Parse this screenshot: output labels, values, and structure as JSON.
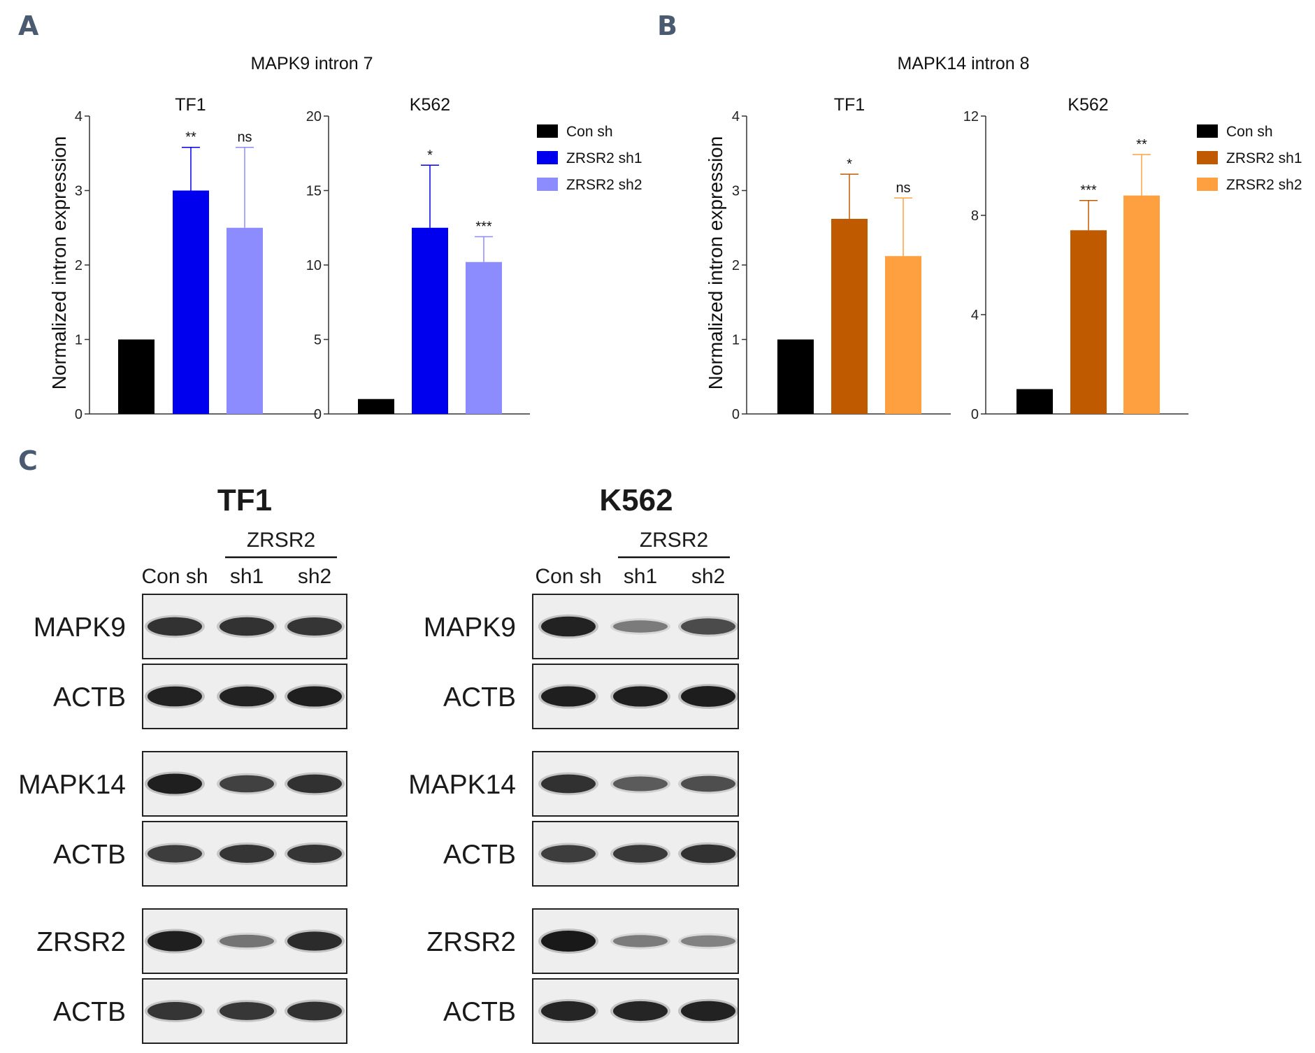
{
  "panel_labels": [
    "A",
    "B",
    "C"
  ],
  "chart_data": [
    {
      "id": "A-TF1",
      "type": "bar",
      "group_title": "MAPK9 intron 7",
      "title": "TF1",
      "ylabel": "Normalized intron expression",
      "categories": [
        "Con sh",
        "ZRSR2 sh1",
        "ZRSR2 sh2"
      ],
      "values": [
        1,
        3.0,
        2.5
      ],
      "errors": [
        0,
        0.58,
        1.08
      ],
      "significance": [
        "",
        "**",
        "ns"
      ],
      "ylim": [
        0,
        4
      ],
      "yticks": [
        0,
        1,
        2,
        3,
        4
      ],
      "colors": [
        "#000000",
        "#0000ee",
        "#8c8cff"
      ]
    },
    {
      "id": "A-K562",
      "type": "bar",
      "title": "K562",
      "categories": [
        "Con sh",
        "ZRSR2 sh1",
        "ZRSR2 sh2"
      ],
      "values": [
        1,
        12.5,
        10.2
      ],
      "errors": [
        0,
        4.2,
        1.7
      ],
      "significance": [
        "",
        "*",
        "***"
      ],
      "ylim": [
        0,
        20
      ],
      "yticks": [
        0,
        5,
        10,
        15,
        20
      ],
      "colors": [
        "#000000",
        "#0000ee",
        "#8c8cff"
      ]
    },
    {
      "id": "B-TF1",
      "type": "bar",
      "group_title": "MAPK14 intron 8",
      "title": "TF1",
      "ylabel": "Normalized intron expression",
      "categories": [
        "Con sh",
        "ZRSR2 sh1",
        "ZRSR2 sh2"
      ],
      "values": [
        1,
        2.62,
        2.12
      ],
      "errors": [
        0,
        0.6,
        0.78
      ],
      "significance": [
        "",
        "*",
        "ns"
      ],
      "ylim": [
        0,
        4
      ],
      "yticks": [
        0,
        1,
        2,
        3,
        4
      ],
      "colors": [
        "#000000",
        "#c05a00",
        "#ffa040"
      ]
    },
    {
      "id": "B-K562",
      "type": "bar",
      "title": "K562",
      "categories": [
        "Con sh",
        "ZRSR2 sh1",
        "ZRSR2 sh2"
      ],
      "values": [
        1,
        7.4,
        8.8
      ],
      "errors": [
        0,
        1.2,
        1.65
      ],
      "significance": [
        "",
        "***",
        "**"
      ],
      "ylim": [
        0,
        12
      ],
      "yticks": [
        0,
        4,
        8,
        12
      ],
      "colors": [
        "#000000",
        "#c05a00",
        "#ffa040"
      ]
    }
  ],
  "legends": {
    "A": [
      {
        "label": "Con sh",
        "color": "#000000"
      },
      {
        "label": "ZRSR2 sh1",
        "color": "#0000ee"
      },
      {
        "label": "ZRSR2 sh2",
        "color": "#8c8cff"
      }
    ],
    "B": [
      {
        "label": "Con sh",
        "color": "#000000"
      },
      {
        "label": "ZRSR2 sh1",
        "color": "#c05a00"
      },
      {
        "label": "ZRSR2 sh2",
        "color": "#ffa040"
      }
    ]
  },
  "western_blots": [
    {
      "cell_line": "TF1",
      "group_label": "ZRSR2",
      "lanes": [
        "Con sh",
        "sh1",
        "sh2"
      ],
      "rows": [
        {
          "label": "MAPK9",
          "intensity": [
            0.8,
            0.8,
            0.78
          ]
        },
        {
          "label": "ACTB",
          "intensity": [
            0.92,
            0.92,
            0.95
          ]
        },
        {
          "label": "MAPK14",
          "intensity": [
            0.95,
            0.7,
            0.82
          ]
        },
        {
          "label": "ACTB",
          "intensity": [
            0.72,
            0.78,
            0.78
          ]
        },
        {
          "label": "ZRSR2",
          "intensity": [
            0.95,
            0.35,
            0.85
          ]
        },
        {
          "label": "ACTB",
          "intensity": [
            0.78,
            0.76,
            0.82
          ]
        }
      ]
    },
    {
      "cell_line": "K562",
      "group_label": "ZRSR2",
      "lanes": [
        "Con sh",
        "sh1",
        "sh2"
      ],
      "rows": [
        {
          "label": "MAPK9",
          "intensity": [
            0.92,
            0.3,
            0.62
          ]
        },
        {
          "label": "ACTB",
          "intensity": [
            0.95,
            0.95,
            0.98
          ]
        },
        {
          "label": "MAPK14",
          "intensity": [
            0.82,
            0.5,
            0.6
          ]
        },
        {
          "label": "ACTB",
          "intensity": [
            0.72,
            0.75,
            0.8
          ]
        },
        {
          "label": "ZRSR2",
          "intensity": [
            1.0,
            0.3,
            0.25
          ]
        },
        {
          "label": "ACTB",
          "intensity": [
            0.9,
            0.9,
            0.92
          ]
        }
      ]
    }
  ]
}
